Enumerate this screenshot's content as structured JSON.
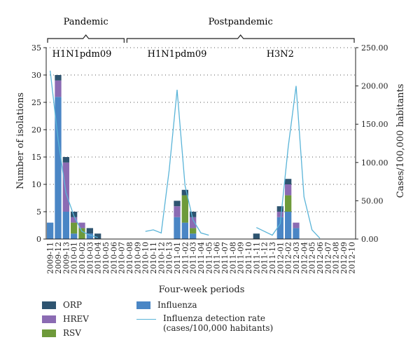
{
  "chart_data": {
    "type": "bar",
    "xlabel": "Four-week periods",
    "ylabel": "Number of isolations",
    "y2label": "Cases/100,000 habitants",
    "ylim": [
      0,
      35
    ],
    "y2lim": [
      0,
      250
    ],
    "yticks": [
      0,
      5,
      10,
      15,
      20,
      25,
      30,
      35
    ],
    "y2ticks": [
      "0.00",
      "50.00",
      "100.00",
      "150.00",
      "200.00",
      "250.00"
    ],
    "grid": "dotted horizontal",
    "categories": [
      "2009-11",
      "2009-12",
      "2009-13",
      "2010-01",
      "2010-02",
      "2010-03",
      "2010-04",
      "2010-05",
      "2010-06",
      "2010-07",
      "2010-08",
      "2010-09",
      "2010-10",
      "2010-11",
      "2010-12",
      "2010-13",
      "2011-01",
      "2011-02",
      "2011-03",
      "2011-04",
      "2011-05",
      "2011-06",
      "2011-07",
      "2011-08",
      "2011-09",
      "2011-10",
      "2011-11",
      "2011-12",
      "2011-13",
      "2012-01",
      "2012-02",
      "2012-03",
      "2012-04",
      "2012-05",
      "2012-06",
      "2012-07",
      "2012-08",
      "2012-09",
      "2012-10"
    ],
    "series": [
      {
        "name": "Influenza",
        "color": "#4a86c5",
        "values": [
          3,
          26,
          5,
          1,
          0,
          1,
          0,
          0,
          0,
          0,
          0,
          0,
          0,
          0,
          0,
          0,
          4,
          3,
          1,
          0,
          0,
          0,
          0,
          0,
          0,
          0,
          0,
          0,
          0,
          4,
          5,
          2,
          0,
          0,
          0,
          0,
          0,
          0,
          0
        ]
      },
      {
        "name": "RSV",
        "color": "#6e9a3a",
        "values": [
          0,
          0,
          0,
          2,
          2,
          0,
          0,
          0,
          0,
          0,
          0,
          0,
          0,
          0,
          0,
          0,
          0,
          5,
          1,
          0,
          0,
          0,
          0,
          0,
          0,
          0,
          0,
          0,
          0,
          0,
          3,
          0,
          0,
          0,
          0,
          0,
          0,
          0,
          0
        ]
      },
      {
        "name": "HREV",
        "color": "#8b6bb3",
        "values": [
          0,
          3,
          9,
          1,
          1,
          0,
          0,
          0,
          0,
          0,
          0,
          0,
          0,
          0,
          0,
          0,
          2,
          0,
          2,
          0,
          0,
          0,
          0,
          0,
          0,
          0,
          0,
          0,
          0,
          1,
          2,
          1,
          0,
          0,
          0,
          0,
          0,
          0,
          0
        ]
      },
      {
        "name": "ORP",
        "color": "#2e5470",
        "values": [
          0,
          1,
          1,
          1,
          0,
          1,
          1,
          0,
          0,
          0,
          0,
          0,
          0,
          0,
          0,
          0,
          1,
          1,
          1,
          0,
          0,
          0,
          0,
          0,
          0,
          0,
          1,
          0,
          0,
          1,
          1,
          0,
          0,
          0,
          0,
          0,
          0,
          0,
          0
        ]
      }
    ],
    "line": {
      "name": "Influenza detection rate (cases/100,000 habitants)",
      "color": "#5ab4d8",
      "values": [
        220,
        130,
        60,
        30,
        10,
        5,
        2,
        null,
        null,
        null,
        null,
        null,
        10,
        12,
        8,
        90,
        195,
        70,
        25,
        8,
        5,
        null,
        null,
        null,
        null,
        null,
        15,
        10,
        5,
        20,
        120,
        200,
        55,
        12,
        1,
        null,
        null,
        null,
        null
      ]
    },
    "period_labels": [
      {
        "label": "Pandemic",
        "from": "2009-11",
        "to": "2010-07"
      },
      {
        "label": "Postpandemic",
        "from": "2010-08",
        "to": "2012-10"
      }
    ],
    "annotations": [
      {
        "text": "H1N1pdm09",
        "at": "2010-02"
      },
      {
        "text": "H1N1pdm09",
        "at": "2011-01"
      },
      {
        "text": "H3N2",
        "at": "2012-01"
      }
    ],
    "legend": {
      "placement": "bottom",
      "items": [
        {
          "label": "ORP",
          "color": "#2e5470",
          "kind": "bar"
        },
        {
          "label": "HREV",
          "color": "#8b6bb3",
          "kind": "bar"
        },
        {
          "label": "RSV",
          "color": "#6e9a3a",
          "kind": "bar"
        },
        {
          "label": "Influenza",
          "color": "#4a86c5",
          "kind": "bar"
        },
        {
          "label": "Influenza detection rate\n(cases/100,000 habitants)",
          "color": "#5ab4d8",
          "kind": "line"
        }
      ]
    }
  }
}
